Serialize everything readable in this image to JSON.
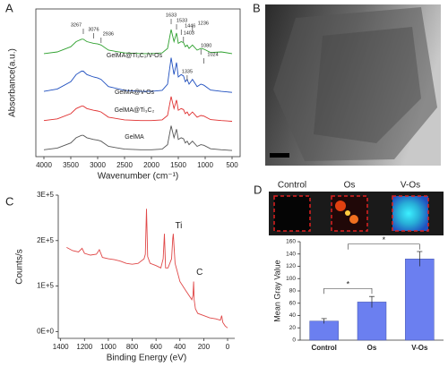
{
  "panel_labels": [
    "A",
    "B",
    "C",
    "D"
  ],
  "chart_data": [
    {
      "type": "line",
      "xlabel": "Wavenumber (cm⁻¹)",
      "ylabel": "Absorbance(a.u.)",
      "xlim": [
        4150,
        350
      ],
      "xticks": [
        4000,
        3500,
        3000,
        2500,
        2000,
        1500,
        1000,
        500
      ],
      "ylim": [
        0,
        4.3
      ],
      "x": [
        4000,
        3750,
        3500,
        3400,
        3300,
        3267,
        3200,
        3076,
        3000,
        2936,
        2800,
        2500,
        2200,
        2000,
        1800,
        1700,
        1633,
        1580,
        1533,
        1500,
        1446,
        1403,
        1370,
        1335,
        1300,
        1236,
        1150,
        1080,
        1024,
        900,
        700,
        500
      ],
      "series": [
        {
          "name": "GelMA@Ti₃C₂/V-Os",
          "color": "#2ea02e",
          "values": [
            3.0,
            3.05,
            3.2,
            3.35,
            3.42,
            3.42,
            3.35,
            3.3,
            3.28,
            3.25,
            3.1,
            3.02,
            3.0,
            3.0,
            3.02,
            3.15,
            3.7,
            3.35,
            3.6,
            3.3,
            3.35,
            3.32,
            3.2,
            3.25,
            3.15,
            3.25,
            3.1,
            3.15,
            3.13,
            3.03,
            3.05,
            3.0
          ]
        },
        {
          "name": "GelMA@V-Os",
          "color": "#1f4fbf",
          "values": [
            1.9,
            1.97,
            2.18,
            2.39,
            2.49,
            2.49,
            2.39,
            2.32,
            2.29,
            2.25,
            2.04,
            1.93,
            1.9,
            1.9,
            1.93,
            2.11,
            2.88,
            2.39,
            2.74,
            2.32,
            2.39,
            2.35,
            2.18,
            2.25,
            2.11,
            2.25,
            2.04,
            2.11,
            2.08,
            1.94,
            1.9,
            1.87
          ]
        },
        {
          "name": "GelMA@Ti₃C₂",
          "color": "#e03030",
          "values": [
            1.05,
            1.1,
            1.25,
            1.4,
            1.47,
            1.47,
            1.4,
            1.35,
            1.33,
            1.3,
            1.15,
            1.07,
            1.05,
            1.05,
            1.07,
            1.2,
            1.75,
            1.4,
            1.65,
            1.35,
            1.4,
            1.37,
            1.25,
            1.3,
            1.2,
            1.3,
            1.15,
            1.2,
            1.18,
            1.08,
            1.05,
            1.03
          ]
        },
        {
          "name": "GelMA",
          "color": "#555555",
          "values": [
            0.2,
            0.25,
            0.4,
            0.55,
            0.62,
            0.62,
            0.55,
            0.5,
            0.48,
            0.45,
            0.3,
            0.22,
            0.2,
            0.2,
            0.22,
            0.35,
            0.9,
            0.55,
            0.8,
            0.5,
            0.55,
            0.52,
            0.4,
            0.45,
            0.35,
            0.45,
            0.3,
            0.35,
            0.33,
            0.23,
            0.2,
            0.18
          ]
        }
      ],
      "peak_labels": [
        3267,
        3076,
        2936,
        1633,
        1533,
        1446,
        1403,
        1335,
        1236,
        1080,
        1024
      ]
    },
    {
      "type": "line",
      "xlabel": "Binding Energy (eV)",
      "ylabel": "Counts/s",
      "xlim": [
        1420,
        -60
      ],
      "xticks": [
        1400,
        1200,
        1000,
        800,
        600,
        400,
        200,
        0
      ],
      "ylim": [
        -15000,
        300000
      ],
      "yticks": [
        {
          "value": 0,
          "label": "0E+0"
        },
        {
          "value": 100000,
          "label": "1E+5"
        },
        {
          "value": 200000,
          "label": "2E+5"
        },
        {
          "value": 300000,
          "label": "3E+5"
        }
      ],
      "x": [
        1350,
        1300,
        1250,
        1220,
        1200,
        1150,
        1100,
        1075,
        1050,
        1000,
        950,
        900,
        850,
        800,
        750,
        700,
        690,
        680,
        670,
        650,
        600,
        560,
        540,
        530,
        520,
        500,
        470,
        460,
        455,
        440,
        420,
        400,
        350,
        300,
        290,
        285,
        280,
        270,
        250,
        200,
        150,
        100,
        60,
        50,
        40,
        20,
        0
      ],
      "values": [
        185000,
        178000,
        175000,
        183000,
        172000,
        168000,
        170000,
        180000,
        163000,
        160000,
        158000,
        155000,
        150000,
        148000,
        150000,
        160000,
        170000,
        270000,
        165000,
        150000,
        145000,
        140000,
        160000,
        215000,
        140000,
        140000,
        160000,
        205000,
        215000,
        150000,
        130000,
        110000,
        90000,
        70000,
        80000,
        110000,
        70000,
        50000,
        40000,
        35000,
        30000,
        28000,
        25000,
        35000,
        20000,
        12000,
        8000
      ],
      "color": "#e04848",
      "annotations": [
        "Ti",
        "C"
      ]
    },
    {
      "type": "bar",
      "image_labels": [
        "Control",
        "Os",
        "V-Os"
      ],
      "ylabel": "Mean Gray Value",
      "categories": [
        "Control",
        "Os",
        "V-Os"
      ],
      "values": [
        31,
        62,
        132
      ],
      "errors": [
        4,
        9,
        12
      ],
      "color": "#6b7ff0",
      "ylim": [
        0,
        160
      ],
      "yticks": [
        0,
        20,
        40,
        60,
        80,
        100,
        120,
        140,
        160
      ],
      "significance": [
        "*",
        "*"
      ]
    }
  ]
}
